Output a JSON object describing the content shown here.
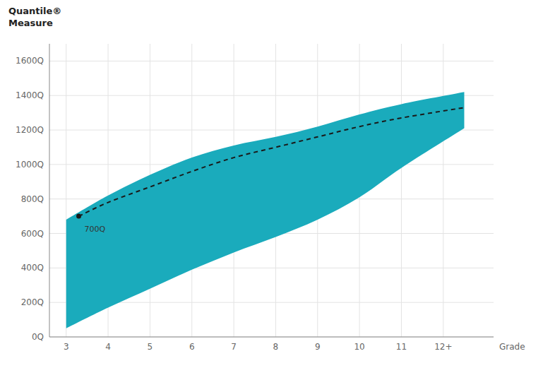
{
  "chart_data": {
    "type": "line",
    "y_label": "Quantile®\nMeasure",
    "x_label": "Grade",
    "xlim": [
      2.6,
      13.2
    ],
    "ylim": [
      0,
      1700
    ],
    "xticks": [
      3,
      4,
      5,
      6,
      7,
      8,
      9,
      10,
      11,
      {
        "value": 12,
        "label": "12+"
      }
    ],
    "yticks": [
      {
        "value": 0,
        "label": "0Q"
      },
      {
        "value": 200,
        "label": "200Q"
      },
      {
        "value": 400,
        "label": "400Q"
      },
      {
        "value": 600,
        "label": "600Q"
      },
      {
        "value": 800,
        "label": "800Q"
      },
      {
        "value": 1000,
        "label": "1000Q"
      },
      {
        "value": 1200,
        "label": "1200Q"
      },
      {
        "value": 1400,
        "label": "1400Q"
      },
      {
        "value": 1600,
        "label": "1600Q"
      }
    ],
    "grid": true,
    "series": [
      {
        "type": "band",
        "color": "#1aabbc",
        "x": [
          3.0,
          4.0,
          5.0,
          6.0,
          7.0,
          8.0,
          9.0,
          10.0,
          11.0,
          12.5
        ],
        "upper": [
          680,
          820,
          940,
          1040,
          1110,
          1160,
          1220,
          1290,
          1350,
          1420
        ],
        "lower": [
          50,
          170,
          280,
          390,
          490,
          580,
          680,
          810,
          980,
          1210
        ]
      },
      {
        "type": "line",
        "color": "#1a1a1a",
        "line_style": "dashed",
        "x": [
          3.3,
          4.0,
          5.0,
          6.0,
          7.0,
          8.0,
          9.0,
          10.0,
          11.0,
          12.5
        ],
        "values": [
          700,
          780,
          870,
          960,
          1040,
          1100,
          1160,
          1220,
          1270,
          1330
        ]
      }
    ],
    "annotation": {
      "text": "700Q",
      "x": 3.3,
      "y": 700,
      "color": "#1a1a1a",
      "marker": "circle"
    }
  }
}
